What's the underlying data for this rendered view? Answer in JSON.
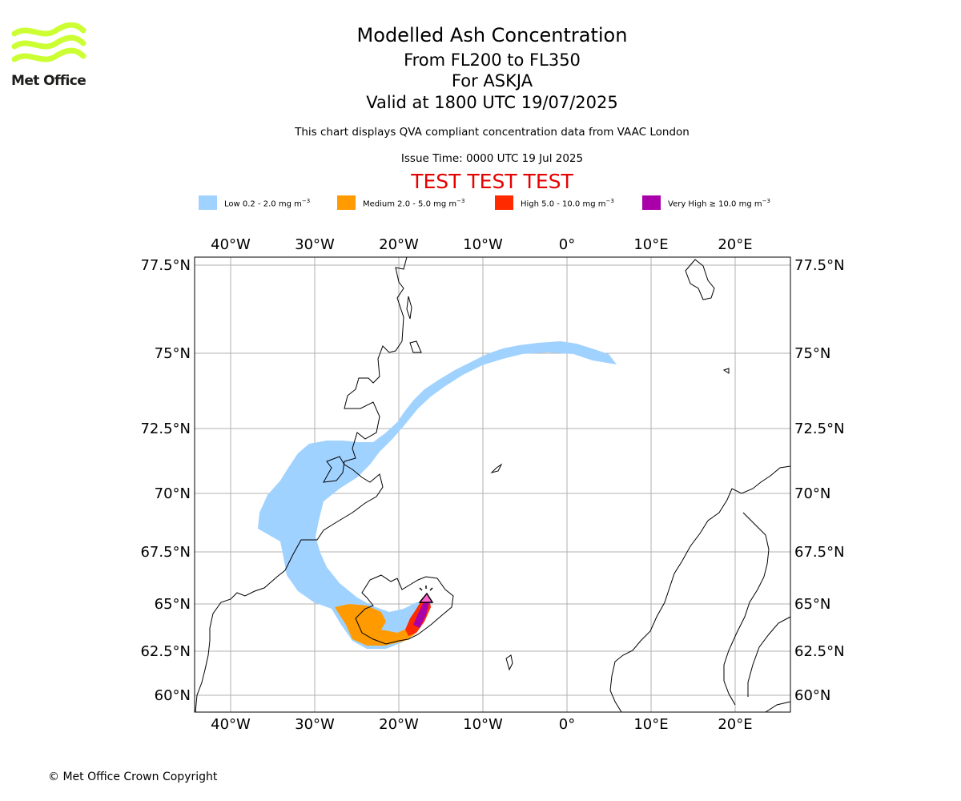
{
  "header": {
    "title": "Modelled Ash Concentration",
    "subtitle1": "From FL200 to FL350",
    "subtitle2": "For ASKJA",
    "subtitle3": "Valid at 1800 UTC 19/07/2025",
    "description": "This chart displays QVA compliant concentration data from VAAC London",
    "issue_time": "Issue Time: 0000 UTC 19 Jul 2025",
    "test_banner": "TEST TEST TEST"
  },
  "logo": {
    "text": "Met Office",
    "color": "#ccff33"
  },
  "legend": [
    {
      "label": "Low 0.2 - 2.0 mg m",
      "exp": "−3",
      "color": "#a0d2ff"
    },
    {
      "label": "Medium 2.0 - 5.0 mg m",
      "exp": "−3",
      "color": "#ff9a00"
    },
    {
      "label": "High 5.0 - 10.0 mg m",
      "exp": "−3",
      "color": "#ff2a00"
    },
    {
      "label": "Very High  ≥  10.0 mg m",
      "exp": "−3",
      "color": "#aa00aa"
    }
  ],
  "axes": {
    "lon_labels": [
      "40°W",
      "30°W",
      "20°W",
      "10°W",
      "0°",
      "10°E",
      "20°E"
    ],
    "lat_labels": [
      "77.5°N",
      "75°N",
      "72.5°N",
      "70°N",
      "67.5°N",
      "65°N",
      "62.5°N",
      "60°N"
    ]
  },
  "footer": {
    "copyright": "© Met Office Crown Copyright"
  }
}
